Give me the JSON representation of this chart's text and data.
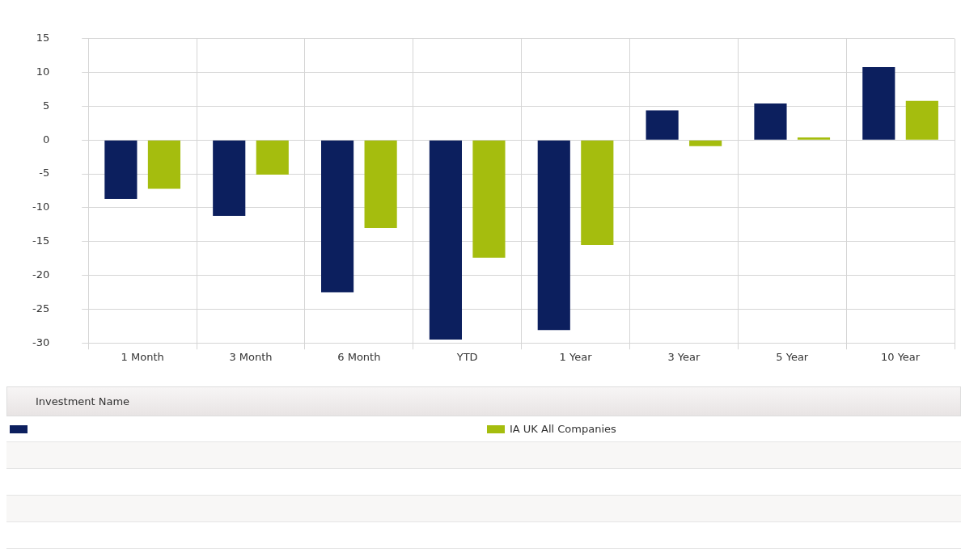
{
  "chart_data": {
    "type": "bar",
    "categories": [
      "1 Month",
      "3 Month",
      "6 Month",
      "YTD",
      "1 Year",
      "3 Year",
      "5 Year",
      "10 Year"
    ],
    "series": [
      {
        "color": "#0c1f5e",
        "values": [
          -8.7,
          -11.2,
          -22.5,
          -29.5,
          -28.1,
          4.4,
          5.4,
          10.8
        ]
      },
      {
        "name": "IA UK All Companies",
        "color": "#a5bd0e",
        "values": [
          -7.2,
          -5.1,
          -13.0,
          -17.4,
          -15.5,
          -0.9,
          0.4,
          5.8
        ]
      }
    ],
    "ylim": [
      -30,
      15
    ],
    "yticks": [
      -30,
      -25,
      -20,
      -15,
      -10,
      -5,
      0,
      5,
      10,
      15
    ],
    "grid": true,
    "legend": "bottom",
    "legend_title": "Investment Name"
  }
}
